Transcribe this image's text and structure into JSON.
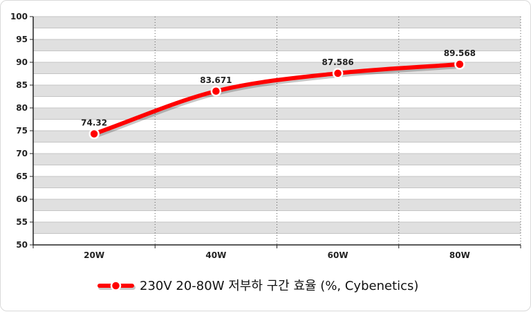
{
  "chart_data": {
    "type": "line",
    "categories": [
      "20W",
      "40W",
      "60W",
      "80W"
    ],
    "series": [
      {
        "name": "230V 20-80W 저부하 구간 효율 (%, Cybenetics)",
        "values": [
          74.32,
          83.671,
          87.586,
          89.568
        ],
        "color": "#ff0000"
      }
    ],
    "data_labels": [
      "74.32",
      "83.671",
      "87.586",
      "89.568"
    ],
    "ylim": [
      50,
      100
    ],
    "yticks": [
      50,
      55,
      60,
      65,
      70,
      75,
      80,
      85,
      90,
      95,
      100
    ],
    "grid": true,
    "band_color": "#e0e0e0",
    "legend_position": "bottom-center",
    "smooth": true
  }
}
